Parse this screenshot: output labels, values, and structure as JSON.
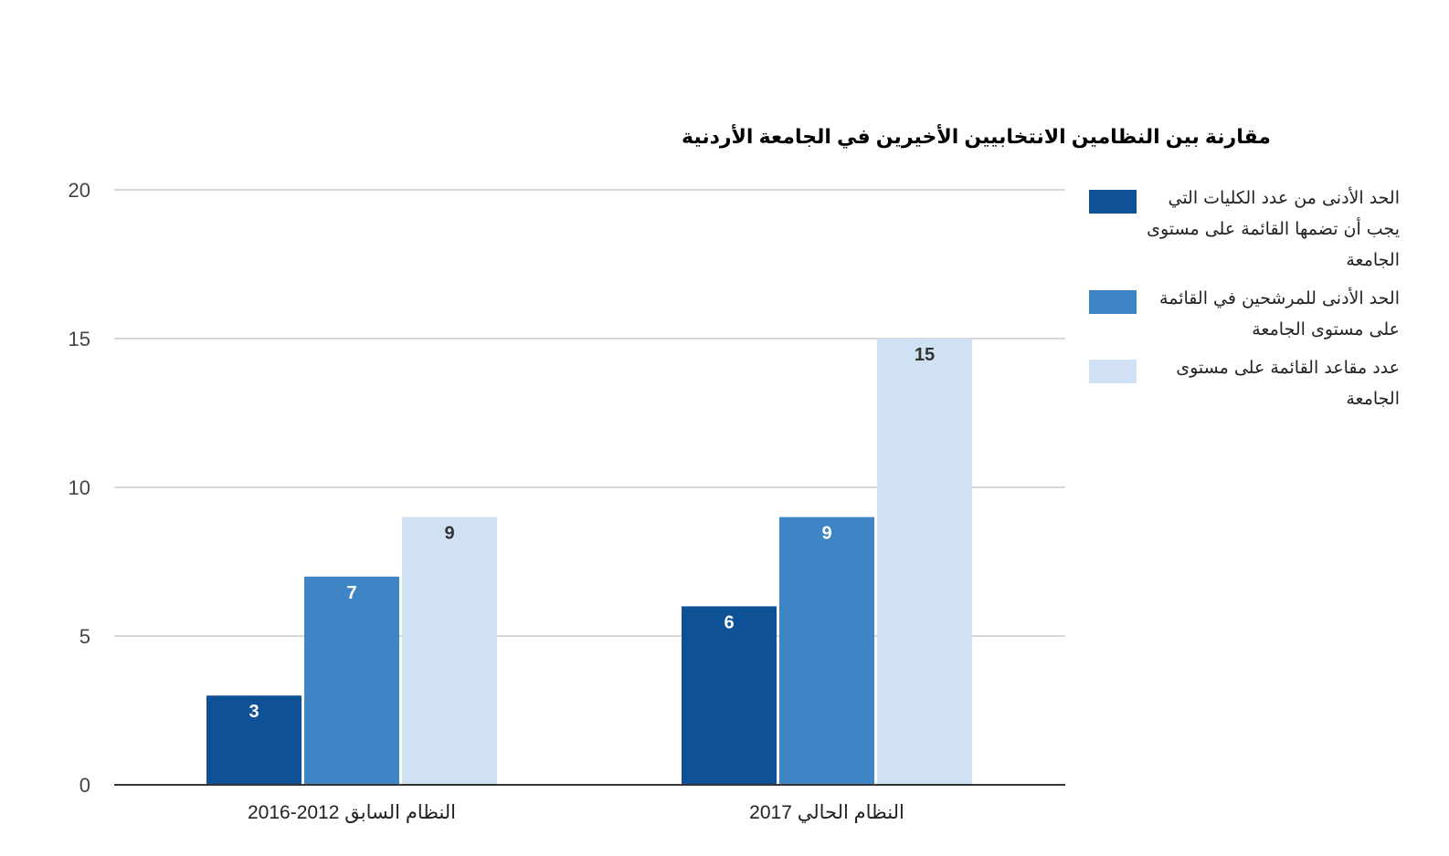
{
  "chart_data": {
    "type": "bar",
    "title": "مقارنة بين النظامين الانتخابيين الأخيرين في الجامعة الأردنية",
    "categories": [
      "النظام السابق 2012-2016",
      "النظام الحالي 2017"
    ],
    "series": [
      {
        "name": "الحد الأدنى من عدد الكليات التي يجب أن تضمها القائمة على مستوى الجامعة",
        "values": [
          3,
          6
        ],
        "color": "#0f5196",
        "label_color": "#ffffff"
      },
      {
        "name": "الحد الأدنى للمرشحين في القائمة على مستوى الجامعة",
        "values": [
          7,
          9
        ],
        "color": "#3e85c6",
        "label_color": "#ffffff"
      },
      {
        "name": "عدد مقاعد القائمة على مستوى الجامعة",
        "values": [
          9,
          15
        ],
        "color": "#cfe1f2",
        "label_color": "#333333"
      }
    ],
    "ylim": [
      0,
      20
    ],
    "yticks": [
      0,
      5,
      10,
      15,
      20
    ],
    "ytick_labels": [
      "0",
      "5",
      "10",
      "15",
      "20"
    ],
    "xlabel": "",
    "ylabel": "",
    "grid": true,
    "legend_position": "right",
    "colors": {
      "gridline": "#cccccc",
      "baseline": "#333333"
    }
  }
}
